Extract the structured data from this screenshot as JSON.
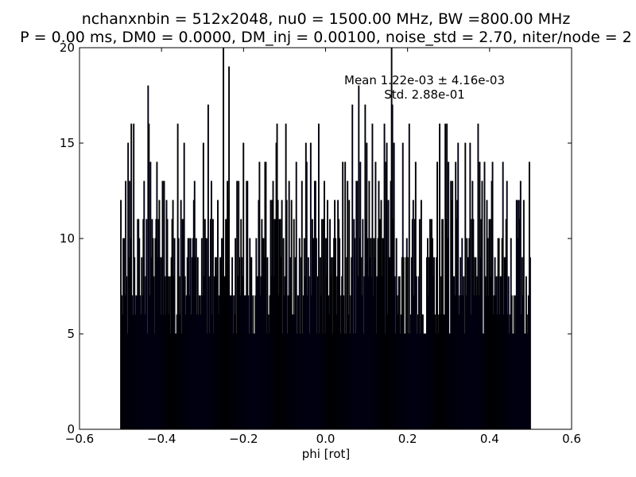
{
  "chart_data": {
    "type": "bar",
    "title": "nchanxnbin = 512x2048, nu0 = 1500.00 MHz, BW =800.00 MHz",
    "subtitle": "P = 0.00 ms, DM0 = 0.0000, DM_inj = 0.00100, noise_std = 2.70, niter/node = 2",
    "xlabel": "phi [rot]",
    "ylabel": "",
    "xlim": [
      -0.6,
      0.6
    ],
    "ylim": [
      0,
      20
    ],
    "x_ticks": [
      "−0.6",
      "−0.4",
      "−0.2",
      "0.0",
      "0.2",
      "0.4",
      "0.6"
    ],
    "y_ticks": [
      "0",
      "5",
      "10",
      "15",
      "20"
    ],
    "grid": false,
    "annotation": {
      "mean_line": "Mean 1.22e-03 ± 4.16e-03",
      "std_line": "Std. 2.88e-01"
    },
    "bar_color": "#000080",
    "edge_color": "#000000",
    "bins": {
      "range": [
        -0.5,
        0.5
      ],
      "count": 512,
      "baseline": 9,
      "spread": 3.2,
      "max_count": 20
    },
    "peaks": [
      {
        "x": -0.25,
        "y": 20
      },
      {
        "x": -0.235,
        "y": 19
      },
      {
        "x": 0.161,
        "y": 20
      },
      {
        "x": -0.467,
        "y": 16
      },
      {
        "x": -0.43,
        "y": 16
      },
      {
        "x": -0.36,
        "y": 16
      },
      {
        "x": -0.345,
        "y": 15
      },
      {
        "x": -0.096,
        "y": 16
      },
      {
        "x": 0.065,
        "y": 17
      },
      {
        "x": 0.143,
        "y": 16
      },
      {
        "x": 0.278,
        "y": 16
      },
      {
        "x": 0.295,
        "y": 16
      },
      {
        "x": 0.352,
        "y": 15
      },
      {
        "x": 0.372,
        "y": 16
      },
      {
        "x": 0.205,
        "y": 16
      },
      {
        "x": -0.12,
        "y": 15
      },
      {
        "x": 0.1,
        "y": 15
      }
    ]
  }
}
